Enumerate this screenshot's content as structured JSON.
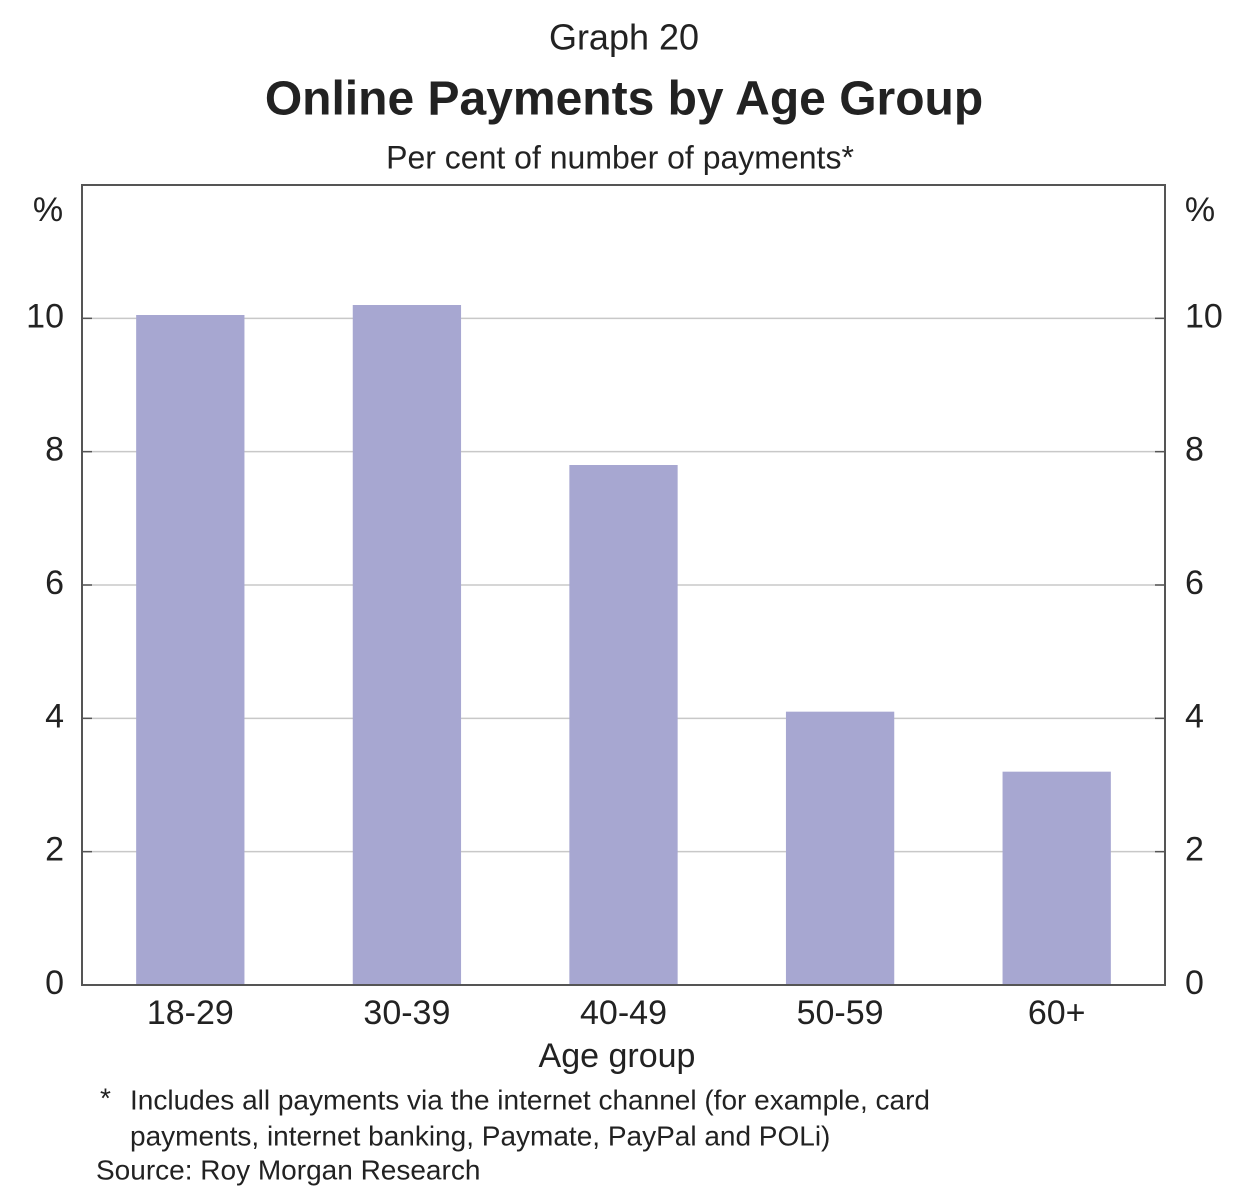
{
  "chart_data": {
    "type": "bar",
    "graph_label": "Graph 20",
    "title": "Online Payments by Age Group",
    "subtitle": "Per cent of number of payments*",
    "y_unit": "%",
    "x_label": "Age group",
    "categories": [
      "18-29",
      "30-39",
      "40-49",
      "50-59",
      "60+"
    ],
    "values": [
      10.05,
      10.2,
      7.8,
      4.1,
      3.2
    ],
    "color": "#a7a7d1",
    "ylim": [
      0,
      12
    ],
    "yticks": [
      0,
      2,
      4,
      6,
      8,
      10
    ],
    "grid": true,
    "footnote_marker": "*",
    "footnote_lines": [
      "Includes all payments via the internet channel (for example, card",
      "payments, internet banking, Paymate, PayPal and POLi)"
    ],
    "source": "Source: Roy Morgan Research"
  }
}
